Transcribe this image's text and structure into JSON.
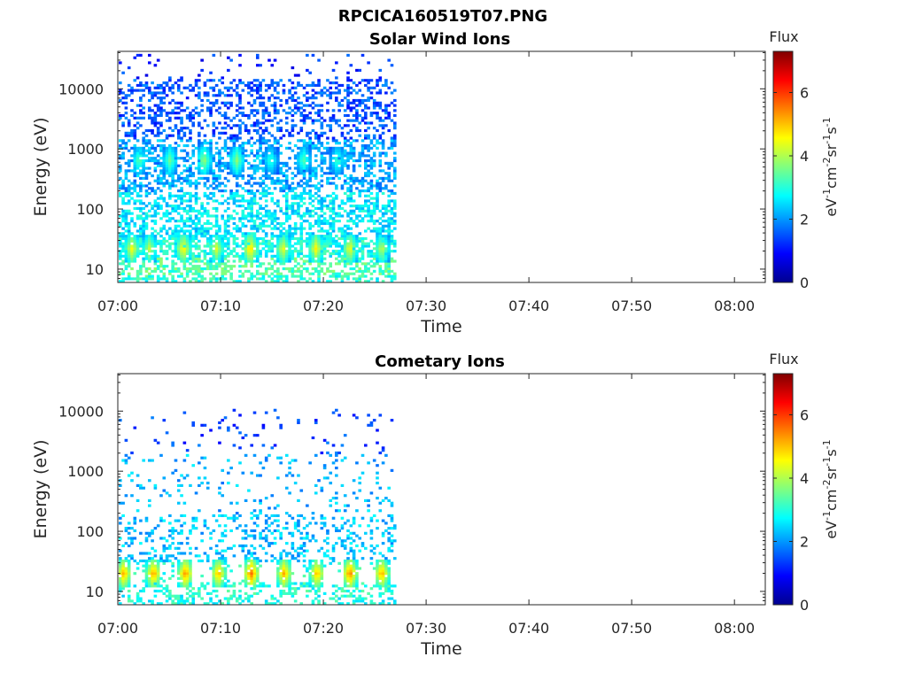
{
  "figure": {
    "title": "RPCICA160519T07.PNG"
  },
  "chart_data": [
    {
      "type": "heatmap",
      "title": "Solar Wind Ions",
      "xlabel": "Time",
      "ylabel": "Energy (eV)",
      "x_ticks": [
        "07:00",
        "07:10",
        "07:20",
        "07:30",
        "07:40",
        "07:50",
        "08:00"
      ],
      "x_range_minutes": [
        0,
        63
      ],
      "y_ticks": [
        10,
        100,
        1000,
        10000
      ],
      "y_scale": "log",
      "y_range": [
        6,
        42000
      ],
      "data_time_range_minutes": [
        0,
        27
      ],
      "colorbar": {
        "label": "Flux",
        "unit_base": "eV",
        "ticks": [
          0,
          2,
          4,
          6
        ],
        "range": [
          0,
          7.3
        ],
        "colormap": "jet"
      },
      "bands": [
        {
          "e_min": 6,
          "e_max": 8,
          "flux": 3.0,
          "density": 0.5
        },
        {
          "e_min": 8,
          "e_max": 16,
          "flux": 3.3,
          "density": 0.45
        },
        {
          "e_min": 16,
          "e_max": 35,
          "flux": 2.9,
          "density": 0.6
        },
        {
          "e_min": 35,
          "e_max": 200,
          "flux": 2.6,
          "density": 0.5
        },
        {
          "e_min": 200,
          "e_max": 1500,
          "flux": 2.1,
          "density": 0.45
        },
        {
          "e_min": 1500,
          "e_max": 15000,
          "flux": 1.5,
          "density": 0.35
        },
        {
          "e_min": 15000,
          "e_max": 40000,
          "flux": 1.2,
          "density": 0.07
        }
      ],
      "pulses": [
        {
          "t": 1.3,
          "e": 22,
          "flux": 4.6
        },
        {
          "t": 3.0,
          "e": 22,
          "flux": 4.2
        },
        {
          "t": 6.3,
          "e": 22,
          "flux": 4.8
        },
        {
          "t": 9.5,
          "e": 22,
          "flux": 4.4
        },
        {
          "t": 12.8,
          "e": 22,
          "flux": 5.0
        },
        {
          "t": 16.0,
          "e": 22,
          "flux": 4.5
        },
        {
          "t": 19.2,
          "e": 22,
          "flux": 4.7
        },
        {
          "t": 22.5,
          "e": 22,
          "flux": 4.6
        },
        {
          "t": 25.6,
          "e": 22,
          "flux": 4.2
        },
        {
          "t": 2.0,
          "e": 650,
          "flux": 3.5
        },
        {
          "t": 5.0,
          "e": 650,
          "flux": 3.6
        },
        {
          "t": 8.3,
          "e": 650,
          "flux": 3.9
        },
        {
          "t": 11.5,
          "e": 650,
          "flux": 3.8
        },
        {
          "t": 14.8,
          "e": 650,
          "flux": 3.2
        },
        {
          "t": 18.0,
          "e": 650,
          "flux": 3.4
        },
        {
          "t": 21.3,
          "e": 650,
          "flux": 3.3
        }
      ]
    },
    {
      "type": "heatmap",
      "title": "Cometary Ions",
      "xlabel": "Time",
      "ylabel": "Energy (eV)",
      "x_ticks": [
        "07:00",
        "07:10",
        "07:20",
        "07:30",
        "07:40",
        "07:50",
        "08:00"
      ],
      "x_range_minutes": [
        0,
        63
      ],
      "y_ticks": [
        10,
        100,
        1000,
        10000
      ],
      "y_scale": "log",
      "y_range": [
        6,
        42000
      ],
      "data_time_range_minutes": [
        0,
        27
      ],
      "colorbar": {
        "label": "Flux",
        "unit_base": "eV",
        "ticks": [
          0,
          2,
          4,
          6
        ],
        "range": [
          0,
          7.3
        ],
        "colormap": "jet"
      },
      "bands": [
        {
          "e_min": 6,
          "e_max": 9,
          "flux": 2.9,
          "density": 0.35
        },
        {
          "e_min": 9,
          "e_max": 14,
          "flux": 3.0,
          "density": 0.3
        },
        {
          "e_min": 14,
          "e_max": 32,
          "flux": 3.0,
          "density": 0.08
        },
        {
          "e_min": 32,
          "e_max": 200,
          "flux": 2.3,
          "density": 0.25
        },
        {
          "e_min": 200,
          "e_max": 2000,
          "flux": 2.2,
          "density": 0.08
        },
        {
          "e_min": 2000,
          "e_max": 11000,
          "flux": 1.4,
          "density": 0.05
        }
      ],
      "pulses": [
        {
          "t": 0.5,
          "e": 20,
          "flux": 5.3
        },
        {
          "t": 3.4,
          "e": 20,
          "flux": 5.4
        },
        {
          "t": 6.5,
          "e": 20,
          "flux": 5.5
        },
        {
          "t": 9.7,
          "e": 20,
          "flux": 5.2
        },
        {
          "t": 12.9,
          "e": 20,
          "flux": 5.7
        },
        {
          "t": 16.1,
          "e": 20,
          "flux": 5.3
        },
        {
          "t": 19.3,
          "e": 20,
          "flux": 5.2
        },
        {
          "t": 22.5,
          "e": 20,
          "flux": 5.6
        },
        {
          "t": 25.6,
          "e": 20,
          "flux": 5.3
        }
      ]
    }
  ]
}
